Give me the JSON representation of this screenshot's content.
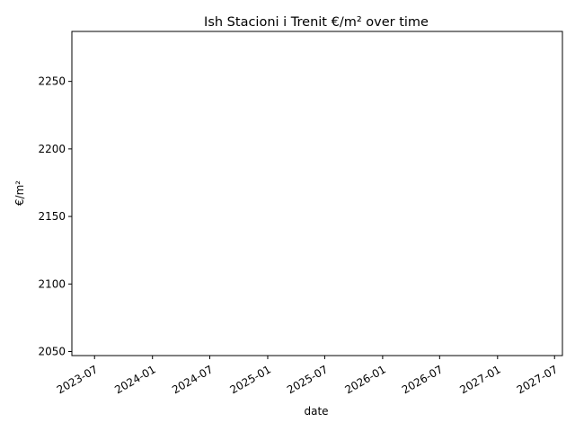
{
  "chart_data": {
    "type": "line",
    "title": "Ish Stacioni i Trenit €/m² over time",
    "xlabel": "date",
    "ylabel": "€/m²",
    "x_ticks": [
      "2023-07",
      "2024-01",
      "2024-07",
      "2025-01",
      "2025-07",
      "2026-01",
      "2026-07",
      "2027-01",
      "2027-07"
    ],
    "y_ticks": [
      2050,
      2100,
      2150,
      2200,
      2250
    ],
    "xlim": [
      "2023-04-20",
      "2027-07-26"
    ],
    "ylim": [
      2047,
      2287
    ],
    "grid": false,
    "series": [
      {
        "x": [],
        "y": []
      }
    ],
    "colors": {
      "axis": "#000000",
      "background": "#ffffff"
    }
  }
}
